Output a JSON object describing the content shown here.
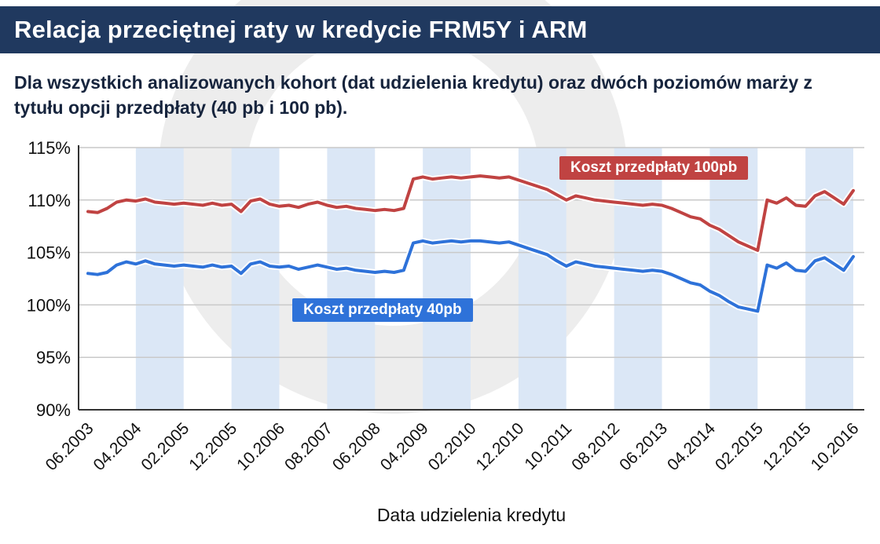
{
  "header": {
    "title": "Relacja przeciętnej raty w kredycie FRM5Y i ARM",
    "bg_color": "#20395f"
  },
  "subtitle": {
    "text": "Dla wszystkich analizowanych kohort (dat udzielenia kredytu) oraz dwóch poziomów marży z tytułu opcji przedpłaty (40 pb i 100 pb)."
  },
  "chart_data": {
    "type": "line",
    "xlabel": "Data udzielenia kredytu",
    "ylabel": "",
    "ylim": [
      90,
      115
    ],
    "y_ticks": [
      90,
      95,
      100,
      105,
      110,
      115
    ],
    "y_tick_suffix": "%",
    "x_tick_labels": [
      "06.2003",
      "04.2004",
      "02.2005",
      "12.2005",
      "10.2006",
      "08.2007",
      "06.2008",
      "04.2009",
      "02.2010",
      "12.2010",
      "10.2011",
      "08.2012",
      "06.2013",
      "04.2014",
      "02.2015",
      "12.2015",
      "10.2016"
    ],
    "points_per_tick_interval": 5,
    "grid": true,
    "gridline_color": "#c9c9c9",
    "axis_color": "#333333",
    "stripe_color": "#dbe7f6",
    "watermark_color": "#ededed",
    "series": [
      {
        "name": "Koszt przedpłaty 100pb",
        "color": "#c04342",
        "values": [
          108.9,
          108.8,
          109.2,
          109.8,
          110.0,
          109.9,
          110.1,
          109.8,
          109.7,
          109.6,
          109.7,
          109.6,
          109.5,
          109.7,
          109.5,
          109.6,
          108.9,
          109.9,
          110.1,
          109.6,
          109.4,
          109.5,
          109.3,
          109.6,
          109.8,
          109.5,
          109.3,
          109.4,
          109.2,
          109.1,
          109.0,
          109.1,
          109.0,
          109.2,
          112.0,
          112.2,
          112.0,
          112.1,
          112.2,
          112.1,
          112.2,
          112.3,
          112.2,
          112.1,
          112.2,
          111.9,
          111.6,
          111.3,
          111.0,
          110.5,
          110.0,
          110.4,
          110.2,
          110.0,
          109.9,
          109.8,
          109.7,
          109.6,
          109.5,
          109.6,
          109.5,
          109.2,
          108.8,
          108.4,
          108.2,
          107.6,
          107.2,
          106.6,
          106.0,
          105.6,
          105.2,
          110.0,
          109.7,
          110.2,
          109.5,
          109.4,
          110.4,
          110.8,
          110.2,
          109.6,
          110.9
        ]
      },
      {
        "name": "Koszt przedpłaty 40pb",
        "color": "#2e72d9",
        "values": [
          103.0,
          102.9,
          103.1,
          103.8,
          104.1,
          103.9,
          104.2,
          103.9,
          103.8,
          103.7,
          103.8,
          103.7,
          103.6,
          103.8,
          103.6,
          103.7,
          103.0,
          103.9,
          104.1,
          103.7,
          103.6,
          103.7,
          103.4,
          103.6,
          103.8,
          103.6,
          103.4,
          103.5,
          103.3,
          103.2,
          103.1,
          103.2,
          103.1,
          103.3,
          105.9,
          106.1,
          105.9,
          106.0,
          106.1,
          106.0,
          106.1,
          106.1,
          106.0,
          105.9,
          106.0,
          105.7,
          105.4,
          105.1,
          104.8,
          104.2,
          103.7,
          104.1,
          103.9,
          103.7,
          103.6,
          103.5,
          103.4,
          103.3,
          103.2,
          103.3,
          103.2,
          102.9,
          102.5,
          102.1,
          101.9,
          101.3,
          100.9,
          100.3,
          99.8,
          99.6,
          99.4,
          103.8,
          103.5,
          104.0,
          103.3,
          103.2,
          104.2,
          104.5,
          103.9,
          103.3,
          104.6
        ]
      }
    ],
    "legend_position": "inline-boxes"
  }
}
